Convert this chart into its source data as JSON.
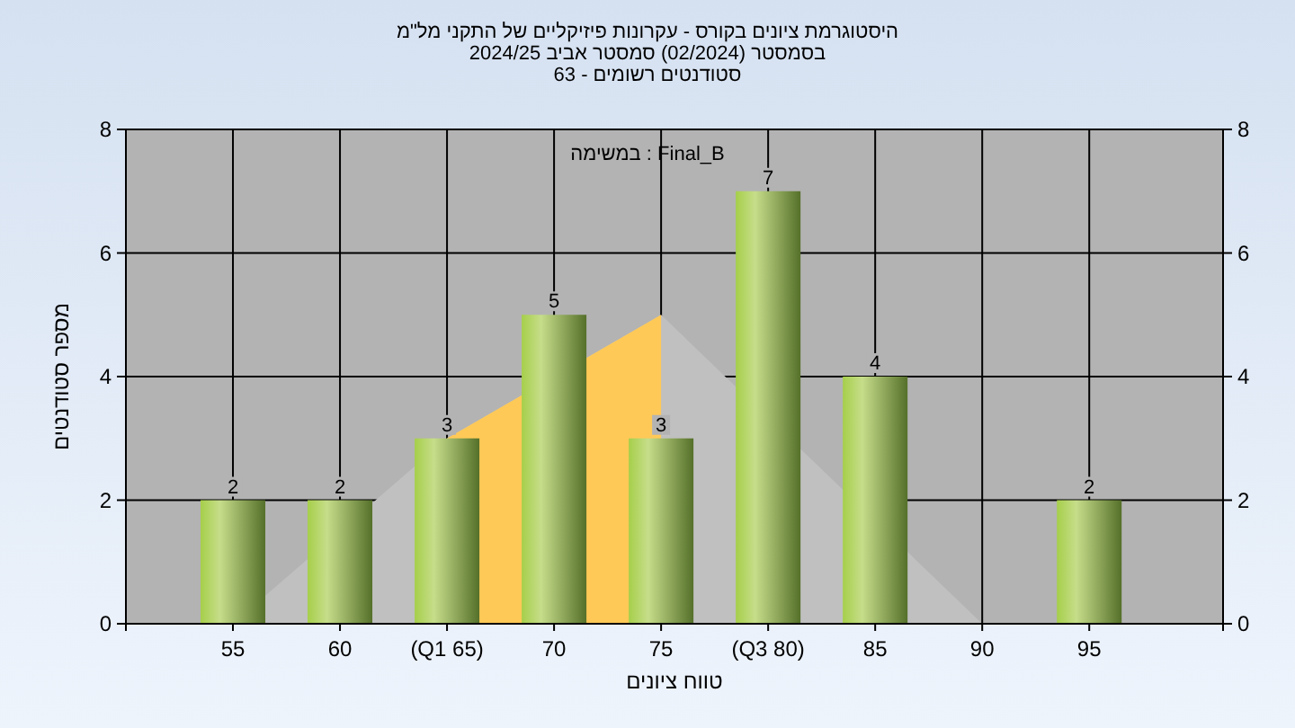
{
  "chart_data": {
    "type": "bar",
    "title": "היסטוגרמת ציונים בקורס - עקרונות פיזיקליים של התקני מל\"מ",
    "subtitle": "בסמסטר  (02/2024)  סמסטר אביב 2024/25",
    "xlabel": "טווח ציונים",
    "ylabel": "מספר סטודנטים",
    "annotations": [
      "סטודנטים רשומים - 63",
      "במשימה : Final_B"
    ],
    "categories": [
      "55",
      "60",
      "(Q1 65)",
      "70",
      "75",
      "(Q3 80)",
      "85",
      "90",
      "95"
    ],
    "series": [
      {
        "type": "area",
        "color": "#c0c0c0",
        "values": [
          0,
          null,
          3,
          null,
          5,
          null,
          null,
          0,
          0
        ]
      },
      {
        "type": "area",
        "color": "#ffc957",
        "values": [
          null,
          null,
          3,
          null,
          5,
          null,
          null,
          null,
          null
        ]
      },
      {
        "color": "#8db04a",
        "values": [
          2,
          2,
          3,
          5,
          3,
          7,
          4,
          null,
          2
        ],
        "value_labels": [
          "2",
          "2",
          "3",
          "5",
          "3",
          "7",
          "4",
          null,
          "2"
        ]
      }
    ],
    "ylim": [
      0,
      8
    ],
    "yticks": [
      0,
      2,
      4,
      6,
      8
    ],
    "y2lim": [
      0,
      8
    ],
    "y2ticks": [
      0,
      2,
      4,
      6,
      8
    ],
    "grid": true
  }
}
